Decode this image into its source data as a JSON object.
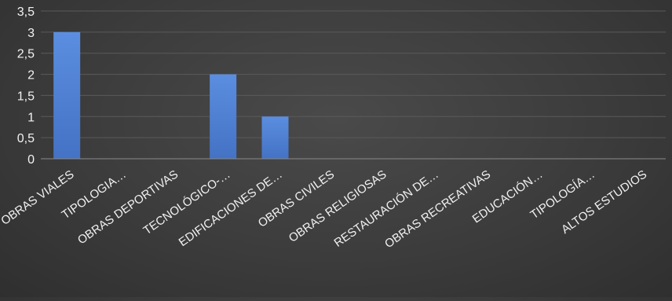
{
  "chart_data": {
    "type": "bar",
    "categories": [
      "OBRAS VIALES",
      "TIPOLOGIA…",
      "OBRAS DEPORTIVAS",
      "TECNOLÓGICO-…",
      "EDIFICACIONES DE…",
      "OBRAS CIVILES",
      "OBRAS RELIGIOSAS",
      "RESTAURACIÓN DE…",
      "OBRAS RECREATIVAS",
      "EDUCACIÓN…",
      "TIPOLOGÍA…",
      "ALTOS ESTUDIOS"
    ],
    "values": [
      3,
      0,
      0,
      2,
      1,
      0,
      0,
      0,
      0,
      0,
      0,
      0
    ],
    "title": "",
    "xlabel": "",
    "ylabel": "",
    "ylim": [
      0,
      3.5
    ],
    "yticks": [
      "0",
      "0,5",
      "1",
      "1,5",
      "2",
      "2,5",
      "3",
      "3,5"
    ],
    "grid": true,
    "legend": "none",
    "colors": {
      "bar": "#4472c4",
      "bar_light": "#5b8ee0",
      "grid": "#5a5a5a",
      "axis": "#8a8a8a",
      "text": "#f2f2f2",
      "background": "#3c3c3c"
    }
  }
}
